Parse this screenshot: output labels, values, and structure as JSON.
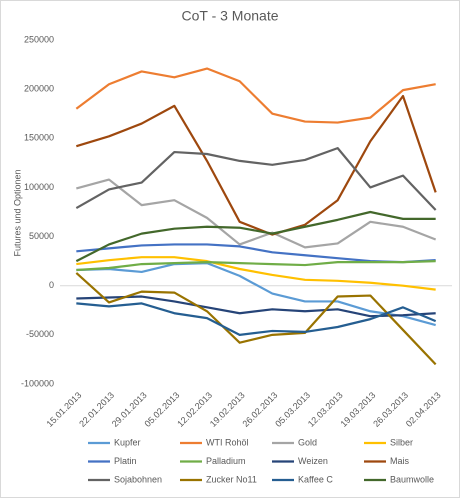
{
  "chart_data": {
    "type": "line",
    "title": "CoT - 3 Monate",
    "y_label": "Futures und Optionen",
    "categories": [
      "15.01.2013",
      "22.01.2013",
      "29.01.2013",
      "05.02.2013",
      "12.02.2013",
      "19.02.2013",
      "26.02.2013",
      "05.03.2013",
      "12.03.2013",
      "19.03.2013",
      "26.03.2013",
      "02.04.2013"
    ],
    "ylim": [
      -100000,
      250000
    ],
    "yticks": [
      -100000,
      -50000,
      0,
      50000,
      100000,
      150000,
      200000,
      250000
    ],
    "grid": false,
    "legend": "bottom",
    "series": [
      {
        "name": "Kupfer",
        "color": "#5b9bd5",
        "values": [
          16000,
          17000,
          14000,
          22000,
          23000,
          10000,
          -8000,
          -16000,
          -16000,
          -26000,
          -31000,
          -40000
        ]
      },
      {
        "name": "WTI Rohöl",
        "color": "#ed7d31",
        "values": [
          180000,
          205000,
          218000,
          212000,
          221000,
          208000,
          175000,
          167000,
          166000,
          171000,
          199000,
          205000
        ]
      },
      {
        "name": "Gold",
        "color": "#a5a5a5",
        "values": [
          99000,
          108000,
          82000,
          87000,
          69000,
          42000,
          54000,
          39000,
          43000,
          65000,
          60000,
          47000
        ]
      },
      {
        "name": "Silber",
        "color": "#ffc000",
        "values": [
          22000,
          26000,
          29000,
          29000,
          25000,
          17000,
          11000,
          6000,
          5000,
          3000,
          0,
          -4000
        ]
      },
      {
        "name": "Platin",
        "color": "#4472c4",
        "values": [
          35000,
          38000,
          41000,
          42000,
          42000,
          40000,
          34000,
          31000,
          28000,
          25000,
          24000,
          26000
        ]
      },
      {
        "name": "Palladium",
        "color": "#70ad47",
        "values": [
          16000,
          18000,
          22000,
          23000,
          24000,
          23000,
          22000,
          21000,
          24000,
          24000,
          24000,
          25000
        ]
      },
      {
        "name": "Weizen",
        "color": "#264478",
        "values": [
          -13000,
          -12000,
          -11000,
          -16000,
          -22000,
          -28000,
          -24000,
          -26000,
          -24000,
          -31000,
          -30000,
          -28000
        ]
      },
      {
        "name": "Mais",
        "color": "#9e480e",
        "values": [
          142000,
          152000,
          165000,
          183000,
          127000,
          65000,
          52000,
          62000,
          87000,
          147000,
          193000,
          95000
        ]
      },
      {
        "name": "Sojabohnen",
        "color": "#636363",
        "values": [
          79000,
          98000,
          105000,
          136000,
          134000,
          127000,
          123000,
          128000,
          140000,
          100000,
          112000,
          77000
        ]
      },
      {
        "name": "Zucker No11",
        "color": "#997300",
        "values": [
          13000,
          -17000,
          -6000,
          -7000,
          -26000,
          -58000,
          -50000,
          -48000,
          -11000,
          -10000,
          -45000,
          -80000
        ]
      },
      {
        "name": "Kaffee C",
        "color": "#255e91",
        "values": [
          -18000,
          -21000,
          -18000,
          -28000,
          -33000,
          -50000,
          -46000,
          -47000,
          -42000,
          -34000,
          -22000,
          -36000
        ]
      },
      {
        "name": "Baumwolle",
        "color": "#43682b",
        "values": [
          25000,
          42000,
          53000,
          58000,
          60000,
          59000,
          53000,
          60000,
          67000,
          75000,
          68000,
          68000
        ]
      }
    ]
  }
}
